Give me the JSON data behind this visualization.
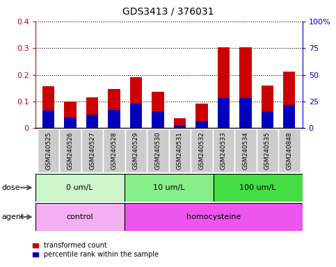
{
  "title": "GDS3413 / 376031",
  "samples": [
    "GSM240525",
    "GSM240526",
    "GSM240527",
    "GSM240528",
    "GSM240529",
    "GSM240530",
    "GSM240531",
    "GSM240532",
    "GSM240533",
    "GSM240534",
    "GSM240535",
    "GSM240848"
  ],
  "red_values": [
    0.157,
    0.1,
    0.115,
    0.147,
    0.19,
    0.137,
    0.038,
    0.093,
    0.304,
    0.304,
    0.16,
    0.212
  ],
  "blue_values_pct": [
    16.25,
    10.0,
    12.5,
    17.0,
    23.25,
    15.75,
    2.5,
    7.0,
    28.0,
    28.25,
    15.75,
    22.0
  ],
  "ylim_left": [
    0,
    0.4
  ],
  "ylim_right": [
    0,
    100
  ],
  "yticks_left": [
    0,
    0.1,
    0.2,
    0.3,
    0.4
  ],
  "yticks_right": [
    0,
    25,
    50,
    75,
    100
  ],
  "ytick_labels_left": [
    "0",
    "0.1",
    "0.2",
    "0.3",
    "0.4"
  ],
  "ytick_labels_right": [
    "0",
    "25",
    "50",
    "75",
    "100%"
  ],
  "dose_groups": [
    {
      "label": "0 um/L",
      "start": 0,
      "end": 4,
      "color": "#ccf5cc"
    },
    {
      "label": "10 um/L",
      "start": 4,
      "end": 8,
      "color": "#88ee88"
    },
    {
      "label": "100 um/L",
      "start": 8,
      "end": 12,
      "color": "#44dd44"
    }
  ],
  "agent_groups": [
    {
      "label": "control",
      "start": 0,
      "end": 4,
      "color": "#f5b0f5"
    },
    {
      "label": "homocysteine",
      "start": 4,
      "end": 12,
      "color": "#ee55ee"
    }
  ],
  "dose_label": "dose",
  "agent_label": "agent",
  "legend_red": "transformed count",
  "legend_blue": "percentile rank within the sample",
  "red_color": "#cc0000",
  "blue_color": "#0000bb",
  "bar_width": 0.55,
  "tick_label_color_left": "#cc0000",
  "tick_label_color_right": "#0000bb",
  "xlabel_bg": "#cccccc"
}
